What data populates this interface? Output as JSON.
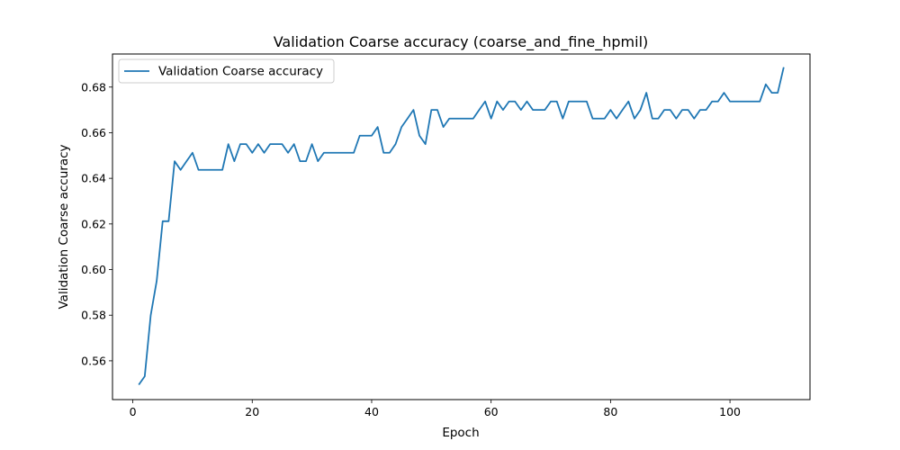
{
  "chart_data": {
    "type": "line",
    "title": "Validation Coarse accuracy (coarse_and_fine_hpmil)",
    "xlabel": "Epoch",
    "ylabel": "Validation Coarse accuracy",
    "xlim": [
      -3.4,
      113.4
    ],
    "ylim": [
      0.543,
      0.6945
    ],
    "xticks": [
      0,
      20,
      40,
      60,
      80,
      100
    ],
    "yticks": [
      0.56,
      0.58,
      0.6,
      0.62,
      0.64,
      0.66,
      0.68
    ],
    "ytick_labels": [
      "0.56",
      "0.58",
      "0.60",
      "0.62",
      "0.64",
      "0.66",
      "0.68"
    ],
    "legend_position": "top-left",
    "grid": false,
    "series": [
      {
        "name": "Validation Coarse accuracy",
        "color": "#1f77b4",
        "x": [
          1,
          2,
          3,
          4,
          5,
          6,
          7,
          8,
          9,
          10,
          11,
          12,
          13,
          14,
          15,
          16,
          17,
          18,
          19,
          20,
          21,
          22,
          23,
          24,
          25,
          26,
          27,
          28,
          29,
          30,
          31,
          32,
          33,
          34,
          35,
          36,
          37,
          38,
          39,
          40,
          41,
          42,
          43,
          44,
          45,
          46,
          47,
          48,
          49,
          50,
          51,
          52,
          53,
          54,
          55,
          56,
          57,
          58,
          59,
          60,
          61,
          62,
          63,
          64,
          65,
          66,
          67,
          68,
          69,
          70,
          71,
          72,
          73,
          74,
          75,
          76,
          77,
          78,
          79,
          80,
          81,
          82,
          83,
          84,
          85,
          86,
          87,
          88,
          89,
          90,
          91,
          92,
          93,
          94,
          95,
          96,
          97,
          98,
          99,
          100,
          101,
          102,
          103,
          104,
          105,
          106,
          107,
          108,
          109
        ],
        "y": [
          0.5495,
          0.5532,
          0.58,
          0.595,
          0.6212,
          0.6212,
          0.6475,
          0.6437,
          0.6475,
          0.6512,
          0.6437,
          0.6437,
          0.6437,
          0.6437,
          0.6437,
          0.655,
          0.6475,
          0.655,
          0.655,
          0.6512,
          0.655,
          0.6512,
          0.655,
          0.655,
          0.655,
          0.6512,
          0.655,
          0.6475,
          0.6475,
          0.655,
          0.6475,
          0.6512,
          0.6512,
          0.6512,
          0.6512,
          0.6512,
          0.6512,
          0.6587,
          0.6587,
          0.6587,
          0.6625,
          0.6512,
          0.6512,
          0.655,
          0.6625,
          0.6662,
          0.67,
          0.6587,
          0.655,
          0.67,
          0.67,
          0.6625,
          0.6662,
          0.6662,
          0.6662,
          0.6662,
          0.6662,
          0.67,
          0.6737,
          0.6662,
          0.6737,
          0.67,
          0.6737,
          0.6737,
          0.67,
          0.6737,
          0.67,
          0.67,
          0.67,
          0.6737,
          0.6737,
          0.6662,
          0.6737,
          0.6737,
          0.6737,
          0.6737,
          0.6662,
          0.6662,
          0.6662,
          0.67,
          0.6662,
          0.67,
          0.6737,
          0.6662,
          0.67,
          0.6775,
          0.6662,
          0.6662,
          0.67,
          0.67,
          0.6662,
          0.67,
          0.67,
          0.6662,
          0.67,
          0.67,
          0.6737,
          0.6737,
          0.6775,
          0.6737,
          0.6737,
          0.6737,
          0.6737,
          0.6737,
          0.6737,
          0.6812,
          0.6775,
          0.6775,
          0.6887
        ]
      }
    ]
  }
}
